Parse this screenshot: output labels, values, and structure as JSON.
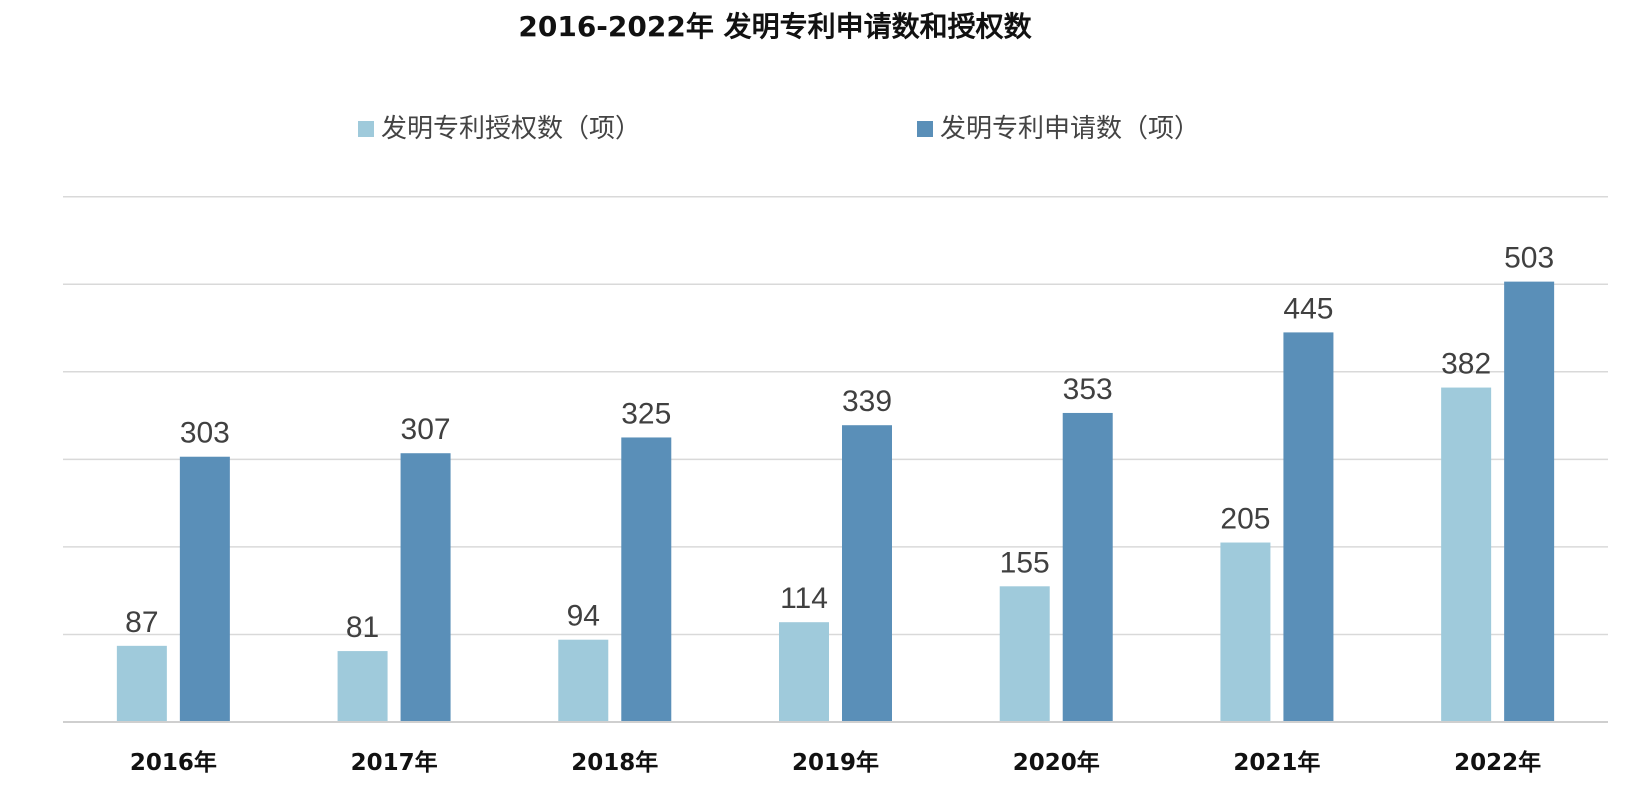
{
  "chart_data": {
    "type": "bar",
    "title": "2016-2022年 发明专利申请数和授权数",
    "categories": [
      "2016年",
      "2017年",
      "2018年",
      "2019年",
      "2020年",
      "2021年",
      "2022年"
    ],
    "series": [
      {
        "name": "发明专利授权数（项）",
        "color": "#9fcadb",
        "values": [
          87,
          81,
          94,
          114,
          155,
          205,
          382
        ]
      },
      {
        "name": "发明专利申请数（项）",
        "color": "#5a8fb8",
        "values": [
          303,
          307,
          325,
          339,
          353,
          445,
          503
        ]
      }
    ],
    "ylim": [
      0,
      600
    ],
    "gridlines": [
      0,
      100,
      200,
      300,
      400,
      500,
      600
    ],
    "grid": true,
    "y_tick_labels_shown": false,
    "legend_position": "top",
    "data_labels": true,
    "xlabel": "",
    "ylabel": ""
  }
}
